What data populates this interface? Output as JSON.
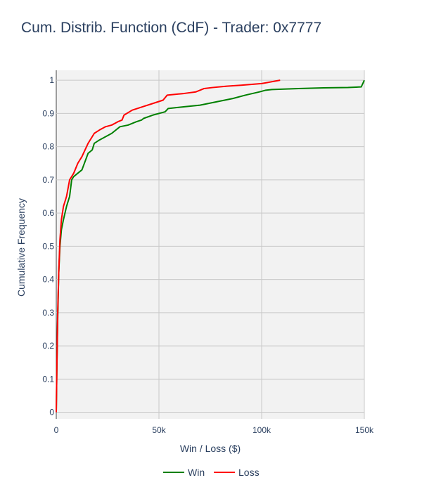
{
  "chart_data": {
    "type": "line",
    "title": "Cum. Distrib. Function (CdF) - Trader: 0x7777",
    "xlabel": "Win / Loss ($)",
    "ylabel": "Cumulative Frequency",
    "xlim": [
      0,
      150000
    ],
    "ylim": [
      -0.02,
      1.03
    ],
    "x_ticks": [
      0,
      50000,
      100000,
      150000
    ],
    "x_tick_labels": [
      "0",
      "50k",
      "100k",
      "150k"
    ],
    "y_ticks": [
      0,
      0.1,
      0.2,
      0.3,
      0.4,
      0.5,
      0.6,
      0.7,
      0.8,
      0.9,
      1
    ],
    "y_tick_labels": [
      "0",
      "0.1",
      "0.2",
      "0.3",
      "0.4",
      "0.5",
      "0.6",
      "0.7",
      "0.8",
      "0.9",
      "1"
    ],
    "grid": true,
    "legend_position": "bottom-center",
    "series": [
      {
        "name": "Win",
        "color": "#008000",
        "x": [
          0,
          300,
          700,
          1200,
          1800,
          2500,
          3500,
          5000,
          6500,
          7500,
          8500,
          10500,
          12500,
          15500,
          17500,
          18500,
          21000,
          24000,
          27000,
          31000,
          35000,
          39000,
          41500,
          42500,
          47000,
          53000,
          54500,
          62000,
          70000,
          78000,
          86000,
          92000,
          99000,
          102000,
          105000,
          118000,
          130000,
          142000,
          148500,
          150000
        ],
        "y": [
          0.0,
          0.14,
          0.28,
          0.42,
          0.5,
          0.55,
          0.58,
          0.62,
          0.65,
          0.7,
          0.71,
          0.72,
          0.73,
          0.78,
          0.79,
          0.81,
          0.82,
          0.83,
          0.84,
          0.86,
          0.865,
          0.875,
          0.88,
          0.885,
          0.895,
          0.905,
          0.915,
          0.92,
          0.925,
          0.935,
          0.945,
          0.955,
          0.965,
          0.97,
          0.972,
          0.975,
          0.977,
          0.978,
          0.98,
          1.0
        ]
      },
      {
        "name": "Loss",
        "color": "#ff0000",
        "x": [
          0,
          300,
          700,
          1200,
          1800,
          2500,
          3500,
          5000,
          6500,
          7500,
          8500,
          10500,
          12500,
          15500,
          17500,
          18500,
          21000,
          24000,
          27000,
          30000,
          32000,
          33000,
          37000,
          42000,
          47000,
          52000,
          54000,
          62000,
          68000,
          72000,
          76000,
          83000,
          90000,
          100000,
          109000
        ],
        "y": [
          0.0,
          0.14,
          0.3,
          0.42,
          0.52,
          0.58,
          0.62,
          0.65,
          0.7,
          0.71,
          0.72,
          0.75,
          0.77,
          0.81,
          0.83,
          0.84,
          0.85,
          0.86,
          0.865,
          0.875,
          0.88,
          0.895,
          0.91,
          0.92,
          0.93,
          0.94,
          0.955,
          0.96,
          0.965,
          0.975,
          0.978,
          0.982,
          0.985,
          0.99,
          1.0
        ]
      }
    ]
  }
}
